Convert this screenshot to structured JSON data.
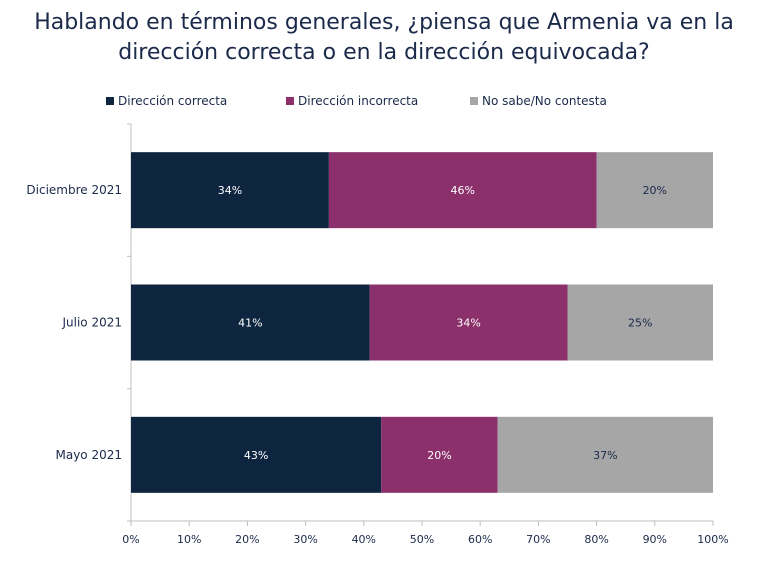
{
  "chart_data": {
    "type": "bar",
    "orientation": "horizontal",
    "stacked": true,
    "title": "Hablando en términos generales, ¿piensa que Armenia va en la dirección correcta o en la dirección equivocada?",
    "categories": [
      "Diciembre 2021",
      "Julio 2021",
      "Mayo 2021"
    ],
    "series": [
      {
        "name": "Dirección correcta",
        "color": "#0e2540",
        "values": [
          34,
          41,
          43
        ],
        "labels": [
          "34%",
          "41%",
          "43%"
        ]
      },
      {
        "name": "Dirección incorrecta",
        "color": "#8b306b",
        "values": [
          46,
          34,
          20
        ],
        "labels": [
          "46%",
          "34%",
          "20%"
        ]
      },
      {
        "name": "No sabe/No contesta",
        "color": "#a6a6a6",
        "values": [
          20,
          25,
          37
        ],
        "labels": [
          "20%",
          "25%",
          "37%"
        ]
      }
    ],
    "xlim": [
      0,
      100
    ],
    "xticks": [
      "0%",
      "10%",
      "20%",
      "30%",
      "40%",
      "50%",
      "60%",
      "70%",
      "80%",
      "90%",
      "100%"
    ],
    "grid": false,
    "legend_position": "top"
  }
}
